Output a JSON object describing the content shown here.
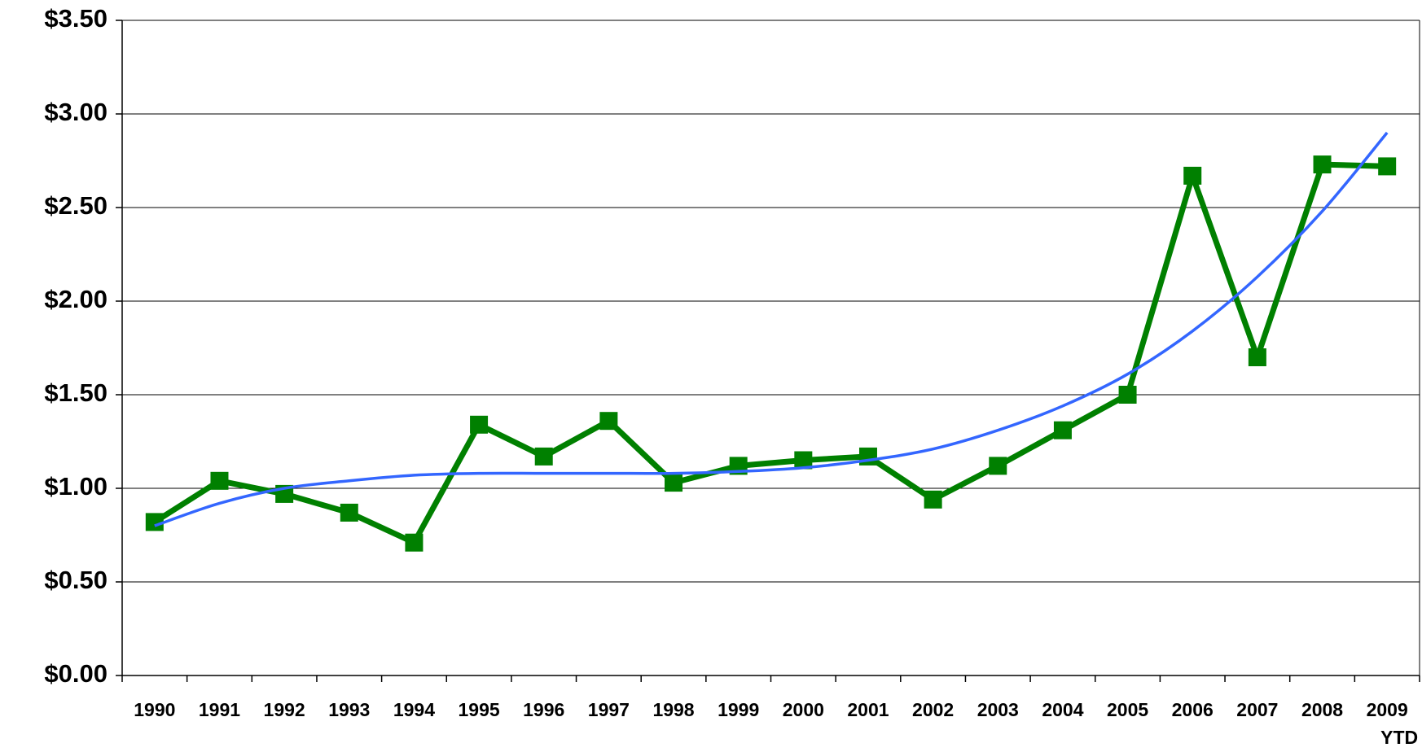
{
  "chart_data": {
    "type": "line",
    "categories": [
      "1990",
      "1991",
      "1992",
      "1993",
      "1994",
      "1995",
      "1996",
      "1997",
      "1998",
      "1999",
      "2000",
      "2001",
      "2002",
      "2003",
      "2004",
      "2005",
      "2006",
      "2007",
      "2008",
      "2009 YTD"
    ],
    "series": [
      {
        "color": "#008000",
        "values": [
          0.82,
          1.04,
          0.97,
          0.87,
          0.71,
          1.34,
          1.17,
          1.36,
          1.03,
          1.12,
          1.15,
          1.17,
          0.94,
          1.12,
          1.31,
          1.5,
          2.67,
          1.7,
          2.73,
          2.72
        ],
        "markers": true
      },
      {
        "color": "#3366ff",
        "values": [
          0.8,
          0.92,
          1.0,
          1.04,
          1.07,
          1.08,
          1.08,
          1.08,
          1.08,
          1.09,
          1.11,
          1.15,
          1.21,
          1.31,
          1.44,
          1.61,
          1.84,
          2.13,
          2.48,
          2.9
        ],
        "markers": false,
        "smooth": true
      }
    ],
    "ylim": [
      0,
      3.5
    ],
    "yticks": [
      {
        "value": 0,
        "label": "$0.00"
      },
      {
        "value": 0.5,
        "label": "$0.50"
      },
      {
        "value": 1,
        "label": "$1.00"
      },
      {
        "value": 1.5,
        "label": "$1.50"
      },
      {
        "value": 2,
        "label": "$2.00"
      },
      {
        "value": 2.5,
        "label": "$2.50"
      },
      {
        "value": 3,
        "label": "$3.00"
      },
      {
        "value": 3.5,
        "label": "$3.50"
      }
    ],
    "grid": true
  }
}
